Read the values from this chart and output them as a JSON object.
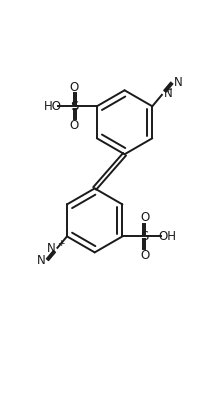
{
  "figsize": [
    2.15,
    3.96
  ],
  "dpi": 100,
  "background": "#ffffff",
  "line_color": "#1a1a1a",
  "line_width": 1.4,
  "font_size": 8.5,
  "font_color": "#1a1a1a",
  "xlim": [
    0,
    10
  ],
  "ylim": [
    0,
    18.5
  ]
}
